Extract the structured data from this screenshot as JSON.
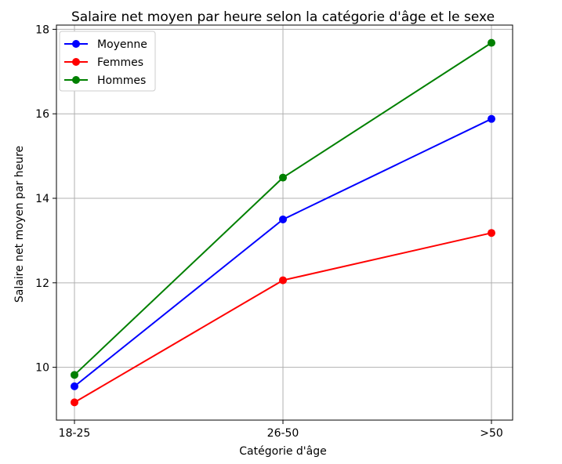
{
  "chart_data": {
    "type": "line",
    "title": "Salaire net moyen par heure selon la catégorie d'âge et le sexe",
    "xlabel": "Catégorie d'âge",
    "ylabel": "Salaire net moyen par heure",
    "categories": [
      "18-25",
      "26-50",
      ">50"
    ],
    "yticks": [
      "10",
      "12",
      "14",
      "16",
      "18"
    ],
    "ylim": [
      8.75,
      18.1
    ],
    "grid": true,
    "legend_position": "top-left",
    "series": [
      {
        "name": "Moyenne",
        "color": "#0000ff",
        "values": [
          9.55,
          13.5,
          15.88
        ]
      },
      {
        "name": "Femmes",
        "color": "#ff0000",
        "values": [
          9.17,
          12.06,
          13.18
        ]
      },
      {
        "name": "Hommes",
        "color": "#008000",
        "values": [
          9.82,
          14.49,
          17.68
        ]
      }
    ]
  }
}
